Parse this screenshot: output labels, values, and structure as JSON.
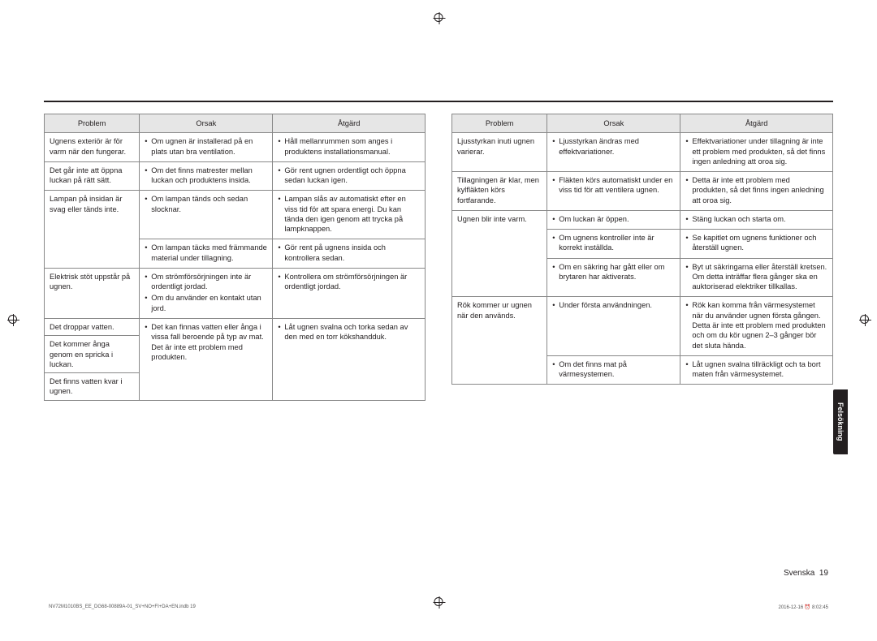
{
  "headers": {
    "problem": "Problem",
    "cause": "Orsak",
    "action": "Åtgärd"
  },
  "footer": {
    "language": "Svenska",
    "page": "19"
  },
  "sideTab": "Felsökning",
  "printLeft": "NV72M1010BS_EE_DG68-00889A-01_SV+NO+FI+DA+EN.indb   19",
  "printRight": "2016-12-16   ⏰ 8:02:45",
  "left": [
    {
      "problem": "Ugnens exteriör är för varm när den fungerar.",
      "causes": [
        "Om ugnen är installerad på en plats utan bra ventilation."
      ],
      "actions": [
        "Håll mellanrummen som anges i produktens installationsmanual."
      ]
    },
    {
      "problem": "Det går inte att öppna luckan på rätt sätt.",
      "causes": [
        "Om det finns matrester mellan luckan och produktens insida."
      ],
      "actions": [
        "Gör rent ugnen ordentligt och öppna sedan luckan igen."
      ]
    },
    {
      "problem": "Lampan på insidan är svag eller tänds inte.",
      "rowspan": 2,
      "rows": [
        {
          "causes": [
            "Om lampan tänds och sedan slocknar."
          ],
          "actions": [
            "Lampan slås av automatiskt efter en viss tid för att spara energi. Du kan tända den igen genom att trycka på lampknappen."
          ]
        },
        {
          "causes": [
            "Om lampan täcks med främmande material under tillagning."
          ],
          "actions": [
            "Gör rent på ugnens insida och kontrollera sedan."
          ]
        }
      ]
    },
    {
      "problem": "Elektrisk stöt uppstår på ugnen.",
      "causes": [
        "Om strömförsörjningen inte är ordentligt jordad.",
        "Om du använder en kontakt utan jord."
      ],
      "actions": [
        "Kontrollera om strömförsörjningen är ordentligt jordad."
      ]
    },
    {
      "problem": "Det droppar vatten.",
      "merge": true,
      "causes": [
        "Det kan finnas vatten eller ånga i vissa fall beroende på typ av mat. Det är inte ett problem med produkten."
      ],
      "actions": [
        "Låt ugnen svalna och torka sedan av den med en torr kökshandduk."
      ]
    },
    {
      "problem": "Det kommer ånga genom en spricka i luckan.",
      "mergePart": true
    },
    {
      "problem": "Det finns vatten kvar i ugnen.",
      "mergePart": true
    }
  ],
  "right": [
    {
      "problem": "Ljusstyrkan inuti ugnen varierar.",
      "causes": [
        "Ljusstyrkan ändras med effektvariationer."
      ],
      "actions": [
        "Effektvariationer under tillagning är inte ett problem med produkten, så det finns ingen anledning att oroa sig."
      ]
    },
    {
      "problem": "Tillagningen är klar, men kylfläkten körs fortfarande.",
      "causes": [
        "Fläkten körs automatiskt under en viss tid för att ventilera ugnen."
      ],
      "actions": [
        "Detta är inte ett problem med produkten, så det finns ingen anledning att oroa sig."
      ]
    },
    {
      "problem": "Ugnen blir inte varm.",
      "rowspan": 3,
      "rows": [
        {
          "causes": [
            "Om luckan är öppen."
          ],
          "actions": [
            "Stäng luckan och starta om."
          ]
        },
        {
          "causes": [
            "Om ugnens kontroller inte är korrekt inställda."
          ],
          "actions": [
            "Se kapitlet om ugnens funktioner och återställ ugnen."
          ]
        },
        {
          "causes": [
            "Om en säkring har gått eller om brytaren har aktiverats."
          ],
          "actions": [
            "Byt ut säkringarna eller återställ kretsen. Om detta inträffar flera gånger ska en auktoriserad elektriker tillkallas."
          ]
        }
      ]
    },
    {
      "problem": "Rök kommer ur ugnen när den används.",
      "rowspan": 2,
      "rows": [
        {
          "causes": [
            "Under första användningen."
          ],
          "actions": [
            "Rök kan komma från värmesystemet när du använder ugnen första gången. Detta är inte ett problem med produkten och om du kör ugnen 2–3 gånger bör det sluta hända."
          ]
        },
        {
          "causes": [
            "Om det finns mat på värmesystemen."
          ],
          "actions": [
            "Låt ugnen svalna tillräckligt och ta bort maten från värmesystemet."
          ]
        }
      ]
    }
  ]
}
